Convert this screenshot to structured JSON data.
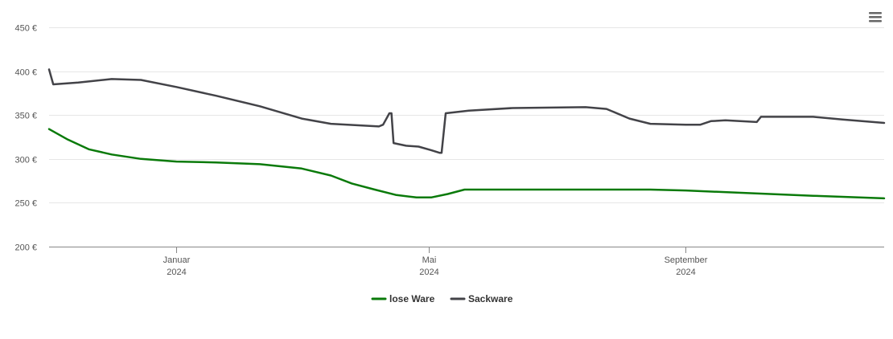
{
  "menu_icon": "hamburger-menu-icon",
  "chart_data": {
    "type": "line",
    "title": "",
    "xlabel": "",
    "ylabel": "",
    "ylim": [
      200,
      450
    ],
    "y_ticks": [
      200,
      250,
      300,
      350,
      400,
      450
    ],
    "y_tick_labels": [
      "200 €",
      "250 €",
      "300 €",
      "350 €",
      "400 €",
      "450 €"
    ],
    "x_range": [
      "2023-11-01",
      "2024-12-05"
    ],
    "x_ticks": [
      {
        "date": "2024-01-01",
        "month": "Januar",
        "year": "2024"
      },
      {
        "date": "2024-05-01",
        "month": "Mai",
        "year": "2024"
      },
      {
        "date": "2024-09-01",
        "month": "September",
        "year": "2024"
      }
    ],
    "grid": true,
    "legend_position": "bottom-center",
    "series": [
      {
        "name": "lose Ware",
        "color": "#0a7a0a",
        "points": [
          [
            "2023-11-01",
            334
          ],
          [
            "2023-11-10",
            322
          ],
          [
            "2023-11-20",
            311
          ],
          [
            "2023-12-01",
            305
          ],
          [
            "2023-12-15",
            300
          ],
          [
            "2024-01-01",
            297
          ],
          [
            "2024-01-20",
            296
          ],
          [
            "2024-02-10",
            294
          ],
          [
            "2024-03-01",
            289
          ],
          [
            "2024-03-15",
            281
          ],
          [
            "2024-03-25",
            272
          ],
          [
            "2024-04-05",
            265
          ],
          [
            "2024-04-15",
            259
          ],
          [
            "2024-04-25",
            256
          ],
          [
            "2024-05-02",
            256
          ],
          [
            "2024-05-10",
            260
          ],
          [
            "2024-05-18",
            265
          ],
          [
            "2024-06-15",
            265
          ],
          [
            "2024-07-15",
            265
          ],
          [
            "2024-08-15",
            265
          ],
          [
            "2024-09-01",
            264
          ],
          [
            "2024-10-01",
            261
          ],
          [
            "2024-11-01",
            258
          ],
          [
            "2024-12-05",
            255
          ]
        ]
      },
      {
        "name": "Sackware",
        "color": "#434348",
        "points": [
          [
            "2023-11-01",
            402
          ],
          [
            "2023-11-03",
            385
          ],
          [
            "2023-11-15",
            387
          ],
          [
            "2023-12-01",
            391
          ],
          [
            "2023-12-15",
            390
          ],
          [
            "2024-01-01",
            382
          ],
          [
            "2024-01-20",
            372
          ],
          [
            "2024-02-10",
            360
          ],
          [
            "2024-03-01",
            346
          ],
          [
            "2024-03-15",
            340
          ],
          [
            "2024-04-07",
            337
          ],
          [
            "2024-04-09",
            339
          ],
          [
            "2024-04-12",
            352
          ],
          [
            "2024-04-13",
            352
          ],
          [
            "2024-04-14",
            318
          ],
          [
            "2024-04-20",
            315
          ],
          [
            "2024-04-26",
            314
          ],
          [
            "2024-05-02",
            310
          ],
          [
            "2024-05-06",
            307
          ],
          [
            "2024-05-07",
            307
          ],
          [
            "2024-05-09",
            352
          ],
          [
            "2024-05-20",
            355
          ],
          [
            "2024-06-10",
            358
          ],
          [
            "2024-07-15",
            359
          ],
          [
            "2024-07-25",
            357
          ],
          [
            "2024-08-05",
            346
          ],
          [
            "2024-08-15",
            340
          ],
          [
            "2024-09-01",
            339
          ],
          [
            "2024-09-08",
            339
          ],
          [
            "2024-09-13",
            343
          ],
          [
            "2024-09-20",
            344
          ],
          [
            "2024-10-05",
            342
          ],
          [
            "2024-10-07",
            348
          ],
          [
            "2024-10-15",
            348
          ],
          [
            "2024-11-01",
            348
          ],
          [
            "2024-11-15",
            345
          ],
          [
            "2024-12-05",
            341
          ]
        ]
      }
    ]
  }
}
